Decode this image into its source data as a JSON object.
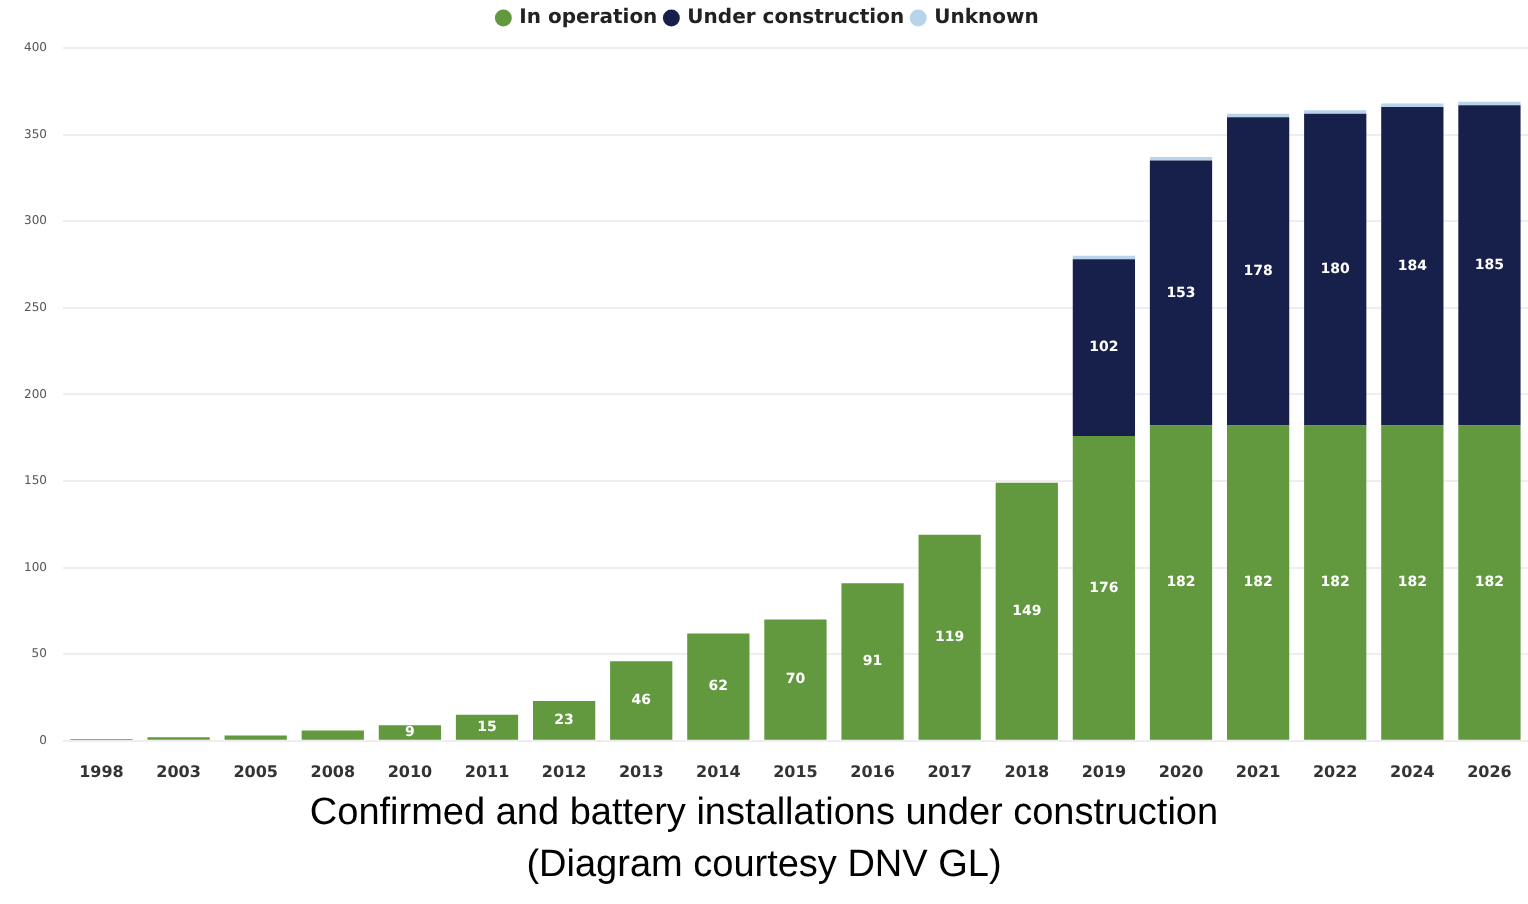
{
  "chart_data": {
    "type": "bar",
    "stacked": true,
    "categories": [
      "1998",
      "2003",
      "2005",
      "2008",
      "2010",
      "2011",
      "2012",
      "2013",
      "2014",
      "2015",
      "2016",
      "2017",
      "2018",
      "2019",
      "2020",
      "2021",
      "2022",
      "2024",
      "2026"
    ],
    "series": [
      {
        "name": "In operation",
        "color": "#62993e",
        "values": [
          1,
          2,
          3,
          6,
          9,
          15,
          23,
          46,
          62,
          70,
          91,
          119,
          149,
          176,
          182,
          182,
          182,
          182,
          182
        ],
        "value_labels": [
          null,
          null,
          null,
          null,
          "9",
          "15",
          "23",
          "46",
          "62",
          "70",
          "91",
          "119",
          "149",
          "176",
          "182",
          "182",
          "182",
          "182",
          "182"
        ]
      },
      {
        "name": "Under construction",
        "color": "#17204a",
        "values": [
          0,
          0,
          0,
          0,
          0,
          0,
          0,
          0,
          0,
          0,
          0,
          0,
          0,
          102,
          153,
          178,
          180,
          184,
          185
        ],
        "value_labels": [
          null,
          null,
          null,
          null,
          null,
          null,
          null,
          null,
          null,
          null,
          null,
          null,
          null,
          "102",
          "153",
          "178",
          "180",
          "184",
          "185"
        ]
      },
      {
        "name": "Unknown",
        "color": "#b8d4ea",
        "values": [
          0,
          0,
          0,
          0,
          0,
          0,
          0,
          0,
          0,
          0,
          0,
          0,
          0,
          2,
          2,
          2,
          2,
          2,
          2
        ]
      }
    ],
    "ylim": [
      0,
      400
    ],
    "yticks": [
      0,
      50,
      100,
      150,
      200,
      250,
      300,
      350,
      400
    ],
    "grid": "y",
    "legend": "top",
    "annotations": [
      "Confirmed and battery installations under construction",
      "(Diagram courtesy DNV GL)"
    ]
  }
}
